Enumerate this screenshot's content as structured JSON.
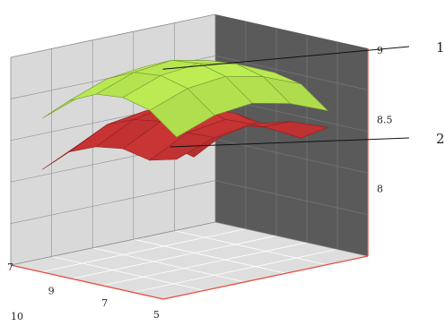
{
  "chart_data": {
    "type": "surface3d",
    "title": "",
    "xlabel": "",
    "ylabel": "",
    "zlabel": "",
    "grid": true,
    "x_ticks": [
      "7",
      "10"
    ],
    "y_ticks": [
      "9",
      "7",
      "5"
    ],
    "z_ticks": [
      "9",
      "8.5",
      "8"
    ],
    "zlim": [
      7.5,
      9
    ],
    "colors": {
      "wall_back": "#d9d9d9",
      "wall_right": "#5a5a5a",
      "floor": "#dedede",
      "grid_line": "#9a9a9a",
      "axis_red": "#e84c3d",
      "surface_1": "#a8d34a",
      "surface_2": "#c23232"
    },
    "series": [
      {
        "name": "1",
        "rows": [
          [
            8.52,
            8.68,
            8.77,
            8.79,
            8.75,
            8.6
          ],
          [
            8.63,
            8.8,
            8.89,
            8.91,
            8.86,
            8.71
          ],
          [
            8.69,
            8.86,
            8.95,
            8.97,
            8.92,
            8.77
          ],
          [
            8.66,
            8.83,
            8.92,
            8.94,
            8.89,
            8.74
          ],
          [
            8.56,
            8.73,
            8.82,
            8.84,
            8.79,
            8.64
          ]
        ]
      },
      {
        "name": "2",
        "rows": [
          [
            8.05,
            8.24,
            8.36,
            8.39,
            8.36,
            8.48
          ],
          [
            8.24,
            8.42,
            8.51,
            8.55,
            8.5,
            8.58
          ],
          [
            8.36,
            8.54,
            8.63,
            8.66,
            8.61,
            8.62
          ],
          [
            8.32,
            8.5,
            8.58,
            8.61,
            8.57,
            8.58
          ],
          [
            8.19,
            8.36,
            8.44,
            8.47,
            8.43,
            8.48
          ]
        ]
      }
    ]
  }
}
